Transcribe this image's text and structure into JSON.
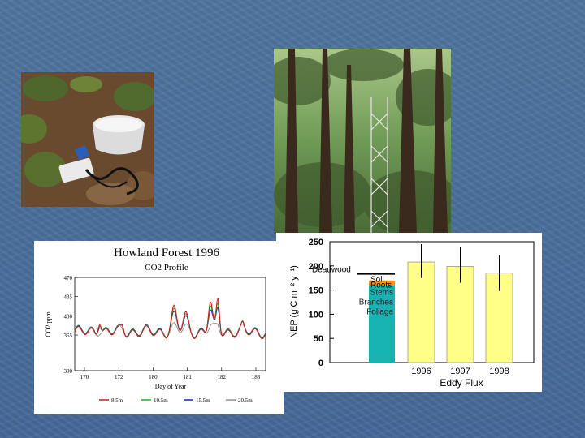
{
  "photos": {
    "soil_chamber": "soil respiration chamber photo",
    "forest": "forest tower photo"
  },
  "chart_data": [
    {
      "type": "line",
      "title": "Howland Forest  1996",
      "subtitle": "CO2 Profile",
      "xlabel": "Day of Year",
      "ylabel": "CO2 ppm",
      "xlim": [
        170,
        184
      ],
      "ylim": [
        300,
        470
      ],
      "x_ticks": [
        "170",
        "172",
        "180",
        "181",
        "182",
        "183"
      ],
      "y_ticks": [
        "470",
        "435",
        "400",
        "365",
        "300"
      ],
      "series": [
        {
          "name": "8.5m",
          "color": "#d01818"
        },
        {
          "name": "10.5m",
          "color": "#18b818"
        },
        {
          "name": "15.5m",
          "color": "#1818c8"
        },
        {
          "name": "20.5m",
          "color": "#909090"
        }
      ]
    },
    {
      "type": "bar",
      "ylabel": "NEP (g C m⁻² y⁻¹)",
      "ylim": [
        0,
        250
      ],
      "y_ticks": [
        "0",
        "50",
        "100",
        "150",
        "200",
        "250"
      ],
      "stacked_bar": {
        "components": [
          {
            "name": "Stems Branches Foliage",
            "value": 160,
            "color": "#17b3b3"
          },
          {
            "name": "Roots",
            "value": 10,
            "color": "#e8922a"
          },
          {
            "name": "Soil",
            "value": 12,
            "color": "#ffffff"
          },
          {
            "name": "Deadwood",
            "value": 3,
            "color": "#000000"
          }
        ],
        "labels": {
          "deadwood": "Deadwood",
          "soil": "Soil",
          "roots": "Roots",
          "stems": "Stems",
          "branches": "Branches",
          "foliage": "Foliage"
        }
      },
      "categories": [
        "1996",
        "1997",
        "1998"
      ],
      "values": [
        208,
        199,
        185
      ],
      "error_high": [
        245,
        240,
        222
      ],
      "error_low": [
        175,
        165,
        148
      ],
      "bar_color": "#ffff88",
      "xlabel": "Eddy Flux"
    }
  ]
}
